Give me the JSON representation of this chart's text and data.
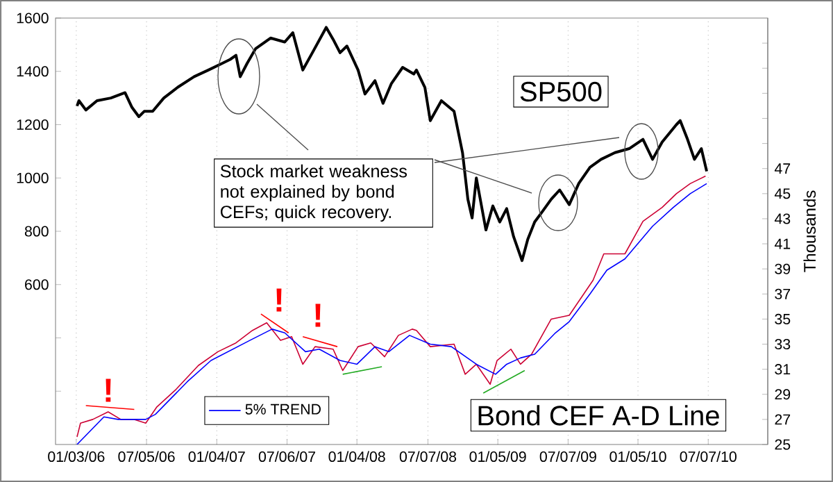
{
  "chart_data": {
    "type": "line",
    "y2label": "Thousands",
    "xlim": [
      "2005-11-10",
      "2010-12-09"
    ],
    "xticks": [
      {
        "value": "2006-01-03",
        "label": "01/03/06"
      },
      {
        "value": "2006-07-05",
        "label": "07/05/06"
      },
      {
        "value": "2007-01-04",
        "label": "01/04/07"
      },
      {
        "value": "2007-07-06",
        "label": "07/06/07"
      },
      {
        "value": "2008-01-04",
        "label": "01/04/08"
      },
      {
        "value": "2008-07-07",
        "label": "07/07/08"
      },
      {
        "value": "2009-01-05",
        "label": "01/05/09"
      },
      {
        "value": "2009-07-07",
        "label": "07/07/09"
      },
      {
        "value": "2010-01-05",
        "label": "01/05/10"
      },
      {
        "value": "2010-07-07",
        "label": "07/07/10"
      }
    ],
    "ylim": [
      0,
      1600
    ],
    "yticks": [
      {
        "value": 200,
        "label": null
      },
      {
        "value": 400,
        "label": null
      },
      600,
      800,
      1000,
      1200,
      1400,
      1600
    ],
    "y2lim": [
      25,
      59
    ],
    "y2ticks": [
      25,
      27,
      29,
      31,
      33,
      35,
      37,
      39,
      41,
      43,
      45,
      47,
      {
        "value": 49,
        "label": null
      },
      {
        "value": 51,
        "label": null
      },
      {
        "value": 53,
        "label": null
      },
      {
        "value": 55,
        "label": null
      },
      {
        "value": 57,
        "label": null
      }
    ],
    "grid": "x",
    "legend": "bottom left",
    "series": [
      {
        "color": "#000000",
        "x": [
          "2006-01-05",
          "2006-01-10",
          "2006-01-28",
          "2006-02-26",
          "2006-04-03",
          "2006-05-10",
          "2006-05-28",
          "2006-06-15",
          "2006-06-29",
          "2006-07-21",
          "2006-08-19",
          "2006-09-24",
          "2006-11-06",
          "2006-12-13",
          "2007-01-18",
          "2007-02-08",
          "2007-02-23",
          "2007-03-06",
          "2007-03-24",
          "2007-04-15",
          "2007-05-24",
          "2007-06-30",
          "2007-07-21",
          "2007-08-16",
          "2007-09-10",
          "2007-10-16",
          "2007-11-03",
          "2007-11-21",
          "2007-12-09",
          "2008-01-07",
          "2008-01-25",
          "2008-02-20",
          "2008-03-12",
          "2008-04-03",
          "2008-05-02",
          "2008-05-31",
          "2008-06-07",
          "2008-06-29",
          "2008-07-13",
          "2008-08-11",
          "2008-09-13",
          "2008-10-05",
          "2008-10-19",
          "2008-10-30",
          "2008-11-10",
          "2008-12-05",
          "2008-12-23",
          "2009-01-10",
          "2009-01-28",
          "2009-02-15",
          "2009-03-09",
          "2009-03-24",
          "2009-04-11",
          "2009-04-29",
          "2009-05-24",
          "2009-06-15",
          "2009-07-10",
          "2009-08-04",
          "2009-09-02",
          "2009-10-01",
          "2009-11-06",
          "2009-12-13",
          "2010-01-18",
          "2010-02-12",
          "2010-03-09",
          "2010-04-15",
          "2010-04-25",
          "2010-05-14",
          "2010-06-01",
          "2010-06-19",
          "2010-07-03"
        ],
        "values": [
          1270,
          1290,
          1255,
          1290,
          1300,
          1320,
          1265,
          1230,
          1250,
          1250,
          1300,
          1340,
          1380,
          1405,
          1430,
          1445,
          1460,
          1380,
          1430,
          1485,
          1525,
          1510,
          1545,
          1405,
          1470,
          1565,
          1520,
          1470,
          1495,
          1405,
          1315,
          1365,
          1280,
          1355,
          1415,
          1390,
          1405,
          1340,
          1215,
          1290,
          1250,
          1095,
          920,
          850,
          1000,
          805,
          895,
          835,
          885,
          780,
          690,
          770,
          835,
          870,
          920,
          955,
          900,
          980,
          1040,
          1070,
          1095,
          1110,
          1145,
          1070,
          1135,
          1200,
          1215,
          1145,
          1070,
          1110,
          1025
        ]
      },
      {
        "color": "#cc0033",
        "axis": "y2",
        "x": [
          "2006-01-05",
          "2006-01-14",
          "2006-02-15",
          "2006-03-27",
          "2006-04-29",
          "2006-06-03",
          "2006-07-03",
          "2006-08-01",
          "2006-09-20",
          "2006-11-17",
          "2007-01-07",
          "2007-02-23",
          "2007-04-07",
          "2007-05-14",
          "2007-06-19",
          "2007-07-18",
          "2007-08-16",
          "2007-09-17",
          "2007-11-03",
          "2007-11-28",
          "2008-01-07",
          "2008-02-09",
          "2008-03-16",
          "2008-04-21",
          "2008-05-27",
          "2008-06-07",
          "2008-07-13",
          "2008-09-13",
          "2008-10-12",
          "2008-11-10",
          "2008-12-16",
          "2009-01-03",
          "2009-02-08",
          "2009-03-05",
          "2009-04-03",
          "2009-05-24",
          "2009-07-10",
          "2009-09-10",
          "2009-10-08",
          "2009-12-02",
          "2010-01-18",
          "2010-03-09",
          "2010-04-15",
          "2010-05-21",
          "2010-06-30"
        ],
        "values": [
          25.6,
          26.7,
          27.0,
          27.6,
          27.0,
          27.0,
          26.7,
          28.0,
          29.4,
          31.3,
          32.4,
          33.1,
          34.1,
          34.7,
          33.3,
          33.6,
          31.4,
          32.8,
          32.6,
          30.9,
          32.8,
          33.1,
          32.0,
          33.7,
          34.2,
          34.1,
          32.8,
          33.0,
          30.6,
          31.4,
          29.8,
          31.7,
          32.6,
          31.4,
          32.2,
          35.0,
          35.3,
          38.1,
          40.2,
          40.2,
          42.8,
          43.9,
          45.0,
          45.8,
          46.4
        ]
      },
      {
        "name": "5% TREND",
        "color": "#0000ff",
        "axis": "y2",
        "x": [
          "2006-01-05",
          "2006-03-16",
          "2006-04-22",
          "2006-07-03",
          "2006-07-28",
          "2006-10-19",
          "2006-12-20",
          "2007-03-31",
          "2007-05-28",
          "2007-06-30",
          "2007-08-23",
          "2007-09-28",
          "2007-11-21",
          "2008-01-04",
          "2008-02-20",
          "2008-03-27",
          "2008-05-20",
          "2008-07-13",
          "2008-09-06",
          "2008-11-10",
          "2008-12-30",
          "2009-01-28",
          "2009-03-05",
          "2009-04-11",
          "2009-06-04",
          "2009-07-10",
          "2009-09-02",
          "2009-10-16",
          "2009-12-02",
          "2010-01-07",
          "2010-02-12",
          "2010-04-07",
          "2010-05-21",
          "2010-07-03"
        ],
        "values": [
          25.0,
          27.2,
          27.0,
          27.0,
          27.4,
          30.0,
          31.7,
          33.3,
          34.2,
          33.9,
          32.4,
          32.6,
          31.7,
          31.4,
          32.8,
          32.4,
          33.7,
          33.0,
          32.8,
          31.4,
          30.6,
          31.4,
          31.9,
          32.2,
          33.9,
          34.8,
          37.0,
          38.9,
          39.8,
          41.1,
          42.4,
          43.9,
          45.0,
          45.8
        ]
      },
      {
        "color": "#ff0000",
        "axis": "y2",
        "x": [
          "2006-01-28",
          "2006-06-03"
        ],
        "values": [
          28.1,
          27.8
        ]
      },
      {
        "color": "#ff0000",
        "axis": "y2",
        "x": [
          "2007-04-29",
          "2007-07-10"
        ],
        "values": [
          35.4,
          33.9
        ]
      },
      {
        "color": "#ff0000",
        "axis": "y2",
        "x": [
          "2007-08-16",
          "2007-11-14"
        ],
        "values": [
          33.6,
          32.8
        ]
      },
      {
        "color": "#22aa22",
        "axis": "y2",
        "x": [
          "2007-11-28",
          "2008-03-09"
        ],
        "values": [
          30.6,
          31.2
        ]
      },
      {
        "color": "#22aa22",
        "axis": "y2",
        "x": [
          "2008-11-28",
          "2009-03-16"
        ],
        "values": [
          29.1,
          30.9
        ]
      }
    ],
    "annotations": [
      "Stock market weakness not explained by bond CEFs; quick recovery.",
      "SP500",
      "Bond CEF A-D Line",
      "!",
      "!",
      "!"
    ]
  }
}
